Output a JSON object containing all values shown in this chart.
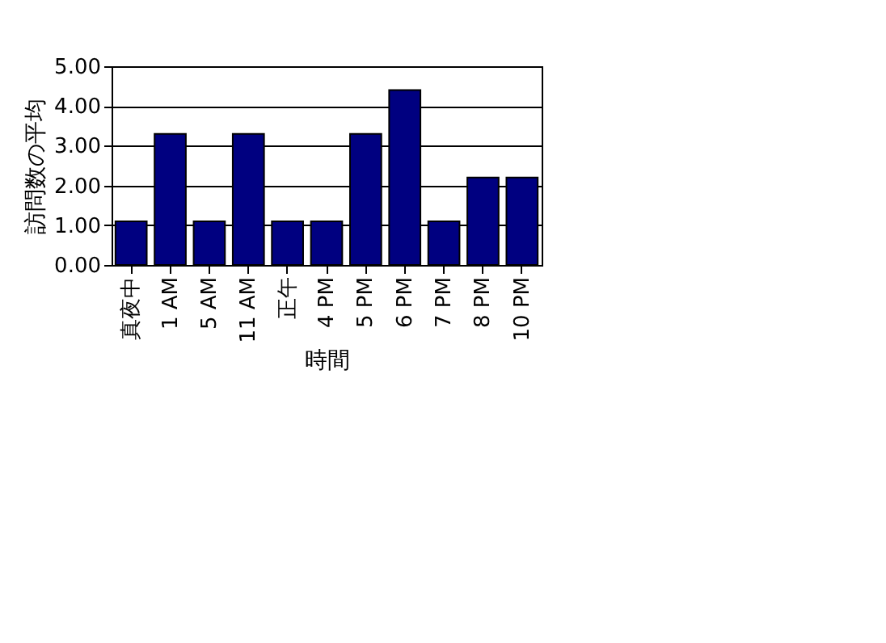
{
  "chart_data": {
    "type": "bar",
    "categories": [
      "真夜中",
      "1 AM",
      "5 AM",
      "11 AM",
      "正午",
      "4 PM",
      "5 PM",
      "6 PM",
      "7 PM",
      "8 PM",
      "10 PM"
    ],
    "values": [
      1.1,
      3.3,
      1.1,
      3.3,
      1.1,
      1.1,
      3.3,
      4.4,
      1.1,
      2.2,
      2.2
    ],
    "color": "#000080",
    "xlabel": "時間",
    "ylabel": "訪問数の平均",
    "ylim": [
      0,
      5
    ],
    "yticks": [
      {
        "value": 0,
        "label": "0.00"
      },
      {
        "value": 1,
        "label": "1.00"
      },
      {
        "value": 2,
        "label": "2.00"
      },
      {
        "value": 3,
        "label": "3.00"
      },
      {
        "value": 4,
        "label": "4.00"
      },
      {
        "value": 5,
        "label": "5.00"
      }
    ],
    "grid": "y"
  }
}
